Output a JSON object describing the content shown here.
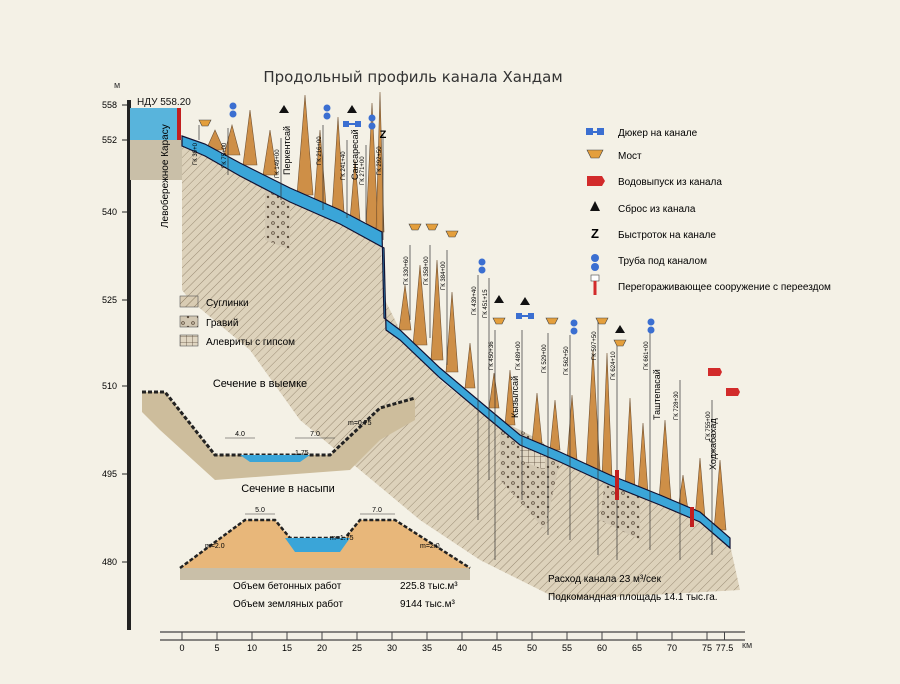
{
  "title": "Продольный профиль канала Хандам",
  "y_axis": {
    "unit": "м",
    "ticks": [
      "558",
      "552",
      "540",
      "525",
      "510",
      "495",
      "480"
    ]
  },
  "x_axis": {
    "unit": "км",
    "ticks": [
      "0",
      "5",
      "10",
      "15",
      "20",
      "25",
      "30",
      "35",
      "40",
      "45",
      "50",
      "55",
      "60",
      "65",
      "70",
      "75",
      "77.5"
    ]
  },
  "headworks_label": "НДУ 558.20",
  "place_labels": [
    "Левобережное Карасу",
    "Перкентсай",
    "Сансаресай",
    "Кызылсай",
    "Таштепасай",
    "Ходжабахад"
  ],
  "pk_labels": [
    "ГК 39+0",
    "ГК 75+00",
    "ГК 149+00",
    "ГК 216+00",
    "ГК 241+40",
    "ГК 271+00",
    "ГК 292+50",
    "ГК 330+60",
    "ГК 358+00",
    "ГК 384+00",
    "ГК 439+40",
    "ГК 451+15",
    "ГК 450+36",
    "ГК 489+00",
    "ГК 529+00",
    "ГК 562+50",
    "ГК 597+50",
    "ГК 624+10",
    "ГК 661+00",
    "ГК 728+30",
    "ГК 755+00"
  ],
  "legend": [
    {
      "icon": "culvert-icon",
      "label": "Дюкер на канале"
    },
    {
      "icon": "bridge-icon",
      "label": "Мост"
    },
    {
      "icon": "outlet-icon",
      "label": "Водовыпуск из канала"
    },
    {
      "icon": "spillway-icon",
      "label": "Сброс из канала"
    },
    {
      "icon": "chute-icon",
      "label": "Быстроток на канале"
    },
    {
      "icon": "pipe-icon",
      "label": "Труба под каналом"
    },
    {
      "icon": "barrier-icon",
      "label": "Перегораживающее сооружение с переездом"
    }
  ],
  "soil_legend": [
    "Суглинки",
    "Гравий",
    "Алевриты с гипсом"
  ],
  "cut_section": {
    "title": "Сечение в выемке",
    "dims": [
      "4.0",
      "7.0",
      "1.75",
      "m=0.75"
    ]
  },
  "fill_section": {
    "title": "Сечение в насыпи",
    "dims": [
      "5.0",
      "7.0",
      "m=2.0",
      "m=1.75",
      "m=2.0"
    ]
  },
  "volumes": [
    {
      "label": "Объем бетонных работ",
      "value": "225.8 тыс.м³"
    },
    {
      "label": "Объем земляных работ",
      "value": "9144 тыс.м³"
    }
  ],
  "stats": [
    "Расход канала 23 м³/сек",
    "Подкомандная площадь 14.1 тыс.га."
  ]
}
